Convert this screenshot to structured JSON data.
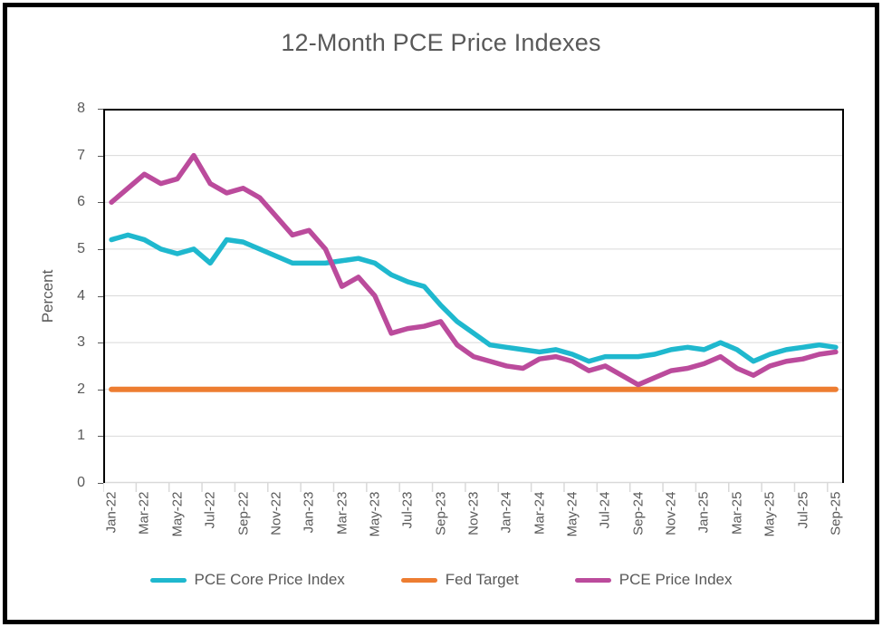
{
  "title": "12-Month PCE Price Indexes",
  "y_axis": {
    "label": "Percent",
    "ticks": [
      0,
      1,
      2,
      3,
      4,
      5,
      6,
      7,
      8
    ]
  },
  "colors": {
    "core": "#1FB8CE",
    "fed_target": "#ED7D31",
    "headline": "#BB4B9C",
    "gridline": "#D9D9D9",
    "axis_line": "#D9D9D9",
    "plot_border": "#000000",
    "text": "#595959"
  },
  "chart_data": {
    "type": "line",
    "title": "12-Month PCE Price Indexes",
    "ylabel": "Percent",
    "xlabel": "",
    "ylim": [
      0,
      8
    ],
    "grid": "horizontal",
    "legend_position": "bottom",
    "x": [
      "Jan-22",
      "Feb-22",
      "Mar-22",
      "Apr-22",
      "May-22",
      "Jun-22",
      "Jul-22",
      "Aug-22",
      "Sep-22",
      "Oct-22",
      "Nov-22",
      "Dec-22",
      "Jan-23",
      "Feb-23",
      "Mar-23",
      "Apr-23",
      "May-23",
      "Jun-23",
      "Jul-23",
      "Aug-23",
      "Sep-23",
      "Oct-23",
      "Nov-23",
      "Dec-23",
      "Jan-24",
      "Feb-24",
      "Mar-24",
      "Apr-24",
      "May-24",
      "Jun-24",
      "Jul-24",
      "Aug-24",
      "Sep-24",
      "Oct-24",
      "Nov-24",
      "Dec-24",
      "Jan-25",
      "Feb-25",
      "Mar-25",
      "Apr-25",
      "May-25",
      "Jun-25",
      "Jul-25",
      "Aug-25",
      "Sep-25"
    ],
    "x_tick_labels": [
      "Jan-22",
      "Mar-22",
      "May-22",
      "Jul-22",
      "Sep-22",
      "Nov-22",
      "Jan-23",
      "Mar-23",
      "May-23",
      "Jul-23",
      "Sep-23",
      "Nov-23",
      "Jan-24",
      "Mar-24",
      "May-24",
      "Jul-24",
      "Sep-24",
      "Nov-24",
      "Jan-25",
      "Mar-25",
      "May-25",
      "Jul-25",
      "Sep-25"
    ],
    "series": [
      {
        "name": "PCE Core Price Index",
        "color": "#1FB8CE",
        "values": [
          5.2,
          5.3,
          5.2,
          5.0,
          4.9,
          5.0,
          4.7,
          5.2,
          5.15,
          5.0,
          4.85,
          4.7,
          4.7,
          4.7,
          4.75,
          4.8,
          4.7,
          4.45,
          4.3,
          4.2,
          3.8,
          3.45,
          3.2,
          2.95,
          2.9,
          2.85,
          2.8,
          2.85,
          2.75,
          2.6,
          2.7,
          2.7,
          2.7,
          2.75,
          2.85,
          2.9,
          2.85,
          3.0,
          2.85,
          2.6,
          2.75,
          2.85,
          2.9,
          2.95,
          2.9
        ]
      },
      {
        "name": "Fed Target",
        "color": "#ED7D31",
        "constant_value": 2.0
      },
      {
        "name": "PCE Price Index",
        "color": "#BB4B9C",
        "values": [
          6.0,
          6.3,
          6.6,
          6.4,
          6.5,
          7.0,
          6.4,
          6.2,
          6.3,
          6.1,
          5.7,
          5.3,
          5.4,
          5.0,
          4.2,
          4.4,
          4.0,
          3.2,
          3.3,
          3.35,
          3.45,
          2.95,
          2.7,
          2.6,
          2.5,
          2.45,
          2.65,
          2.7,
          2.6,
          2.4,
          2.5,
          2.3,
          2.1,
          2.25,
          2.4,
          2.45,
          2.55,
          2.7,
          2.45,
          2.3,
          2.5,
          2.6,
          2.65,
          2.75,
          2.8
        ]
      }
    ]
  },
  "legend": {
    "items": [
      {
        "label": "PCE Core Price Index",
        "color": "#1FB8CE"
      },
      {
        "label": "Fed Target",
        "color": "#ED7D31"
      },
      {
        "label": "PCE Price Index",
        "color": "#BB4B9C"
      }
    ]
  }
}
